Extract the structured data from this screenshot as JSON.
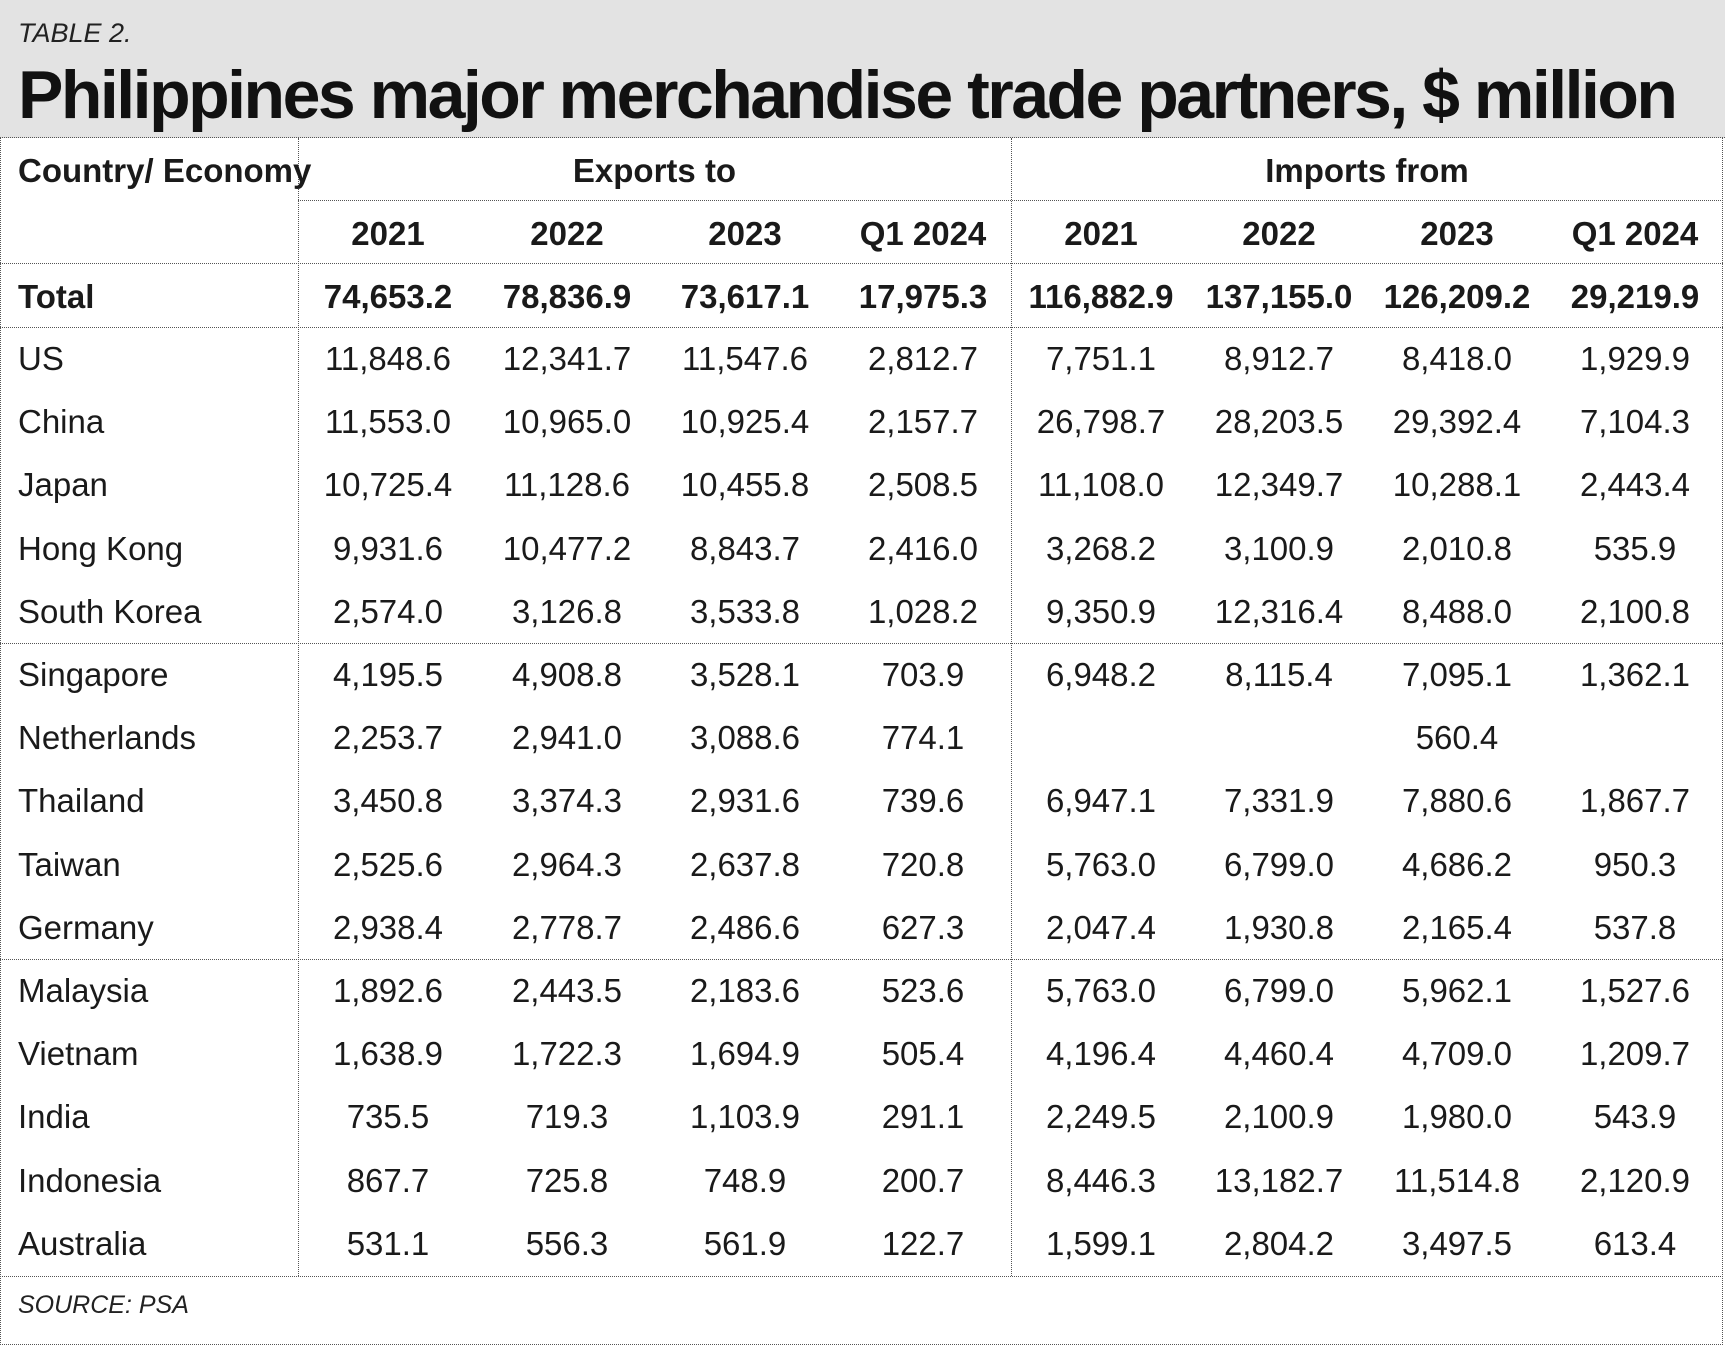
{
  "table_label": "TABLE 2.",
  "title": "Philippines major merchandise trade partners, $ million",
  "source": "SOURCE: PSA",
  "chart_data": {
    "type": "table",
    "row_header": "Country/ Economy",
    "column_groups": [
      {
        "name": "Exports to",
        "columns": [
          "2021",
          "2022",
          "2023",
          "Q1 2024"
        ]
      },
      {
        "name": "Imports from",
        "columns": [
          "2021",
          "2022",
          "2023",
          "Q1 2024"
        ]
      }
    ],
    "total": {
      "label": "Total",
      "values": [
        "74,653.2",
        "78,836.9",
        "73,617.1",
        "17,975.3",
        "116,882.9",
        "137,155.0",
        "126,209.2",
        "29,219.9"
      ]
    },
    "rows": [
      {
        "label": "US",
        "values": [
          "11,848.6",
          "12,341.7",
          "11,547.6",
          "2,812.7",
          "7,751.1",
          "8,912.7",
          "8,418.0",
          "1,929.9"
        ]
      },
      {
        "label": "China",
        "values": [
          "11,553.0",
          "10,965.0",
          "10,925.4",
          "2,157.7",
          "26,798.7",
          "28,203.5",
          "29,392.4",
          "7,104.3"
        ]
      },
      {
        "label": "Japan",
        "values": [
          "10,725.4",
          "11,128.6",
          "10,455.8",
          "2,508.5",
          "11,108.0",
          "12,349.7",
          "10,288.1",
          "2,443.4"
        ]
      },
      {
        "label": "Hong Kong",
        "values": [
          "9,931.6",
          "10,477.2",
          "8,843.7",
          "2,416.0",
          "3,268.2",
          "3,100.9",
          "2,010.8",
          "535.9"
        ]
      },
      {
        "label": "South Korea",
        "values": [
          "2,574.0",
          "3,126.8",
          "3,533.8",
          "1,028.2",
          "9,350.9",
          "12,316.4",
          "8,488.0",
          "2,100.8"
        ]
      },
      {
        "label": "Singapore",
        "values": [
          "4,195.5",
          "4,908.8",
          "3,528.1",
          "703.9",
          "6,948.2",
          "8,115.4",
          "7,095.1",
          "1,362.1"
        ]
      },
      {
        "label": "Netherlands",
        "values": [
          "2,253.7",
          "2,941.0",
          "3,088.6",
          "774.1",
          "",
          "",
          "560.4",
          ""
        ]
      },
      {
        "label": "Thailand",
        "values": [
          "3,450.8",
          "3,374.3",
          "2,931.6",
          "739.6",
          "6,947.1",
          "7,331.9",
          "7,880.6",
          "1,867.7"
        ]
      },
      {
        "label": "Taiwan",
        "values": [
          "2,525.6",
          "2,964.3",
          "2,637.8",
          "720.8",
          "5,763.0",
          "6,799.0",
          "4,686.2",
          "950.3"
        ]
      },
      {
        "label": "Germany",
        "values": [
          "2,938.4",
          "2,778.7",
          "2,486.6",
          "627.3",
          "2,047.4",
          "1,930.8",
          "2,165.4",
          "537.8"
        ]
      },
      {
        "label": "Malaysia",
        "values": [
          "1,892.6",
          "2,443.5",
          "2,183.6",
          "523.6",
          "5,763.0",
          "6,799.0",
          "5,962.1",
          "1,527.6"
        ]
      },
      {
        "label": "Vietnam",
        "values": [
          "1,638.9",
          "1,722.3",
          "1,694.9",
          "505.4",
          "4,196.4",
          "4,460.4",
          "4,709.0",
          "1,209.7"
        ]
      },
      {
        "label": "India",
        "values": [
          "735.5",
          "719.3",
          "1,103.9",
          "291.1",
          "2,249.5",
          "2,100.9",
          "1,980.0",
          "543.9"
        ]
      },
      {
        "label": "Indonesia",
        "values": [
          "867.7",
          "725.8",
          "748.9",
          "200.7",
          "8,446.3",
          "13,182.7",
          "11,514.8",
          "2,120.9"
        ]
      },
      {
        "label": "Australia",
        "values": [
          "531.1",
          "556.3",
          "561.9",
          "122.7",
          "1,599.1",
          "2,804.2",
          "3,497.5",
          "613.4"
        ]
      }
    ]
  }
}
